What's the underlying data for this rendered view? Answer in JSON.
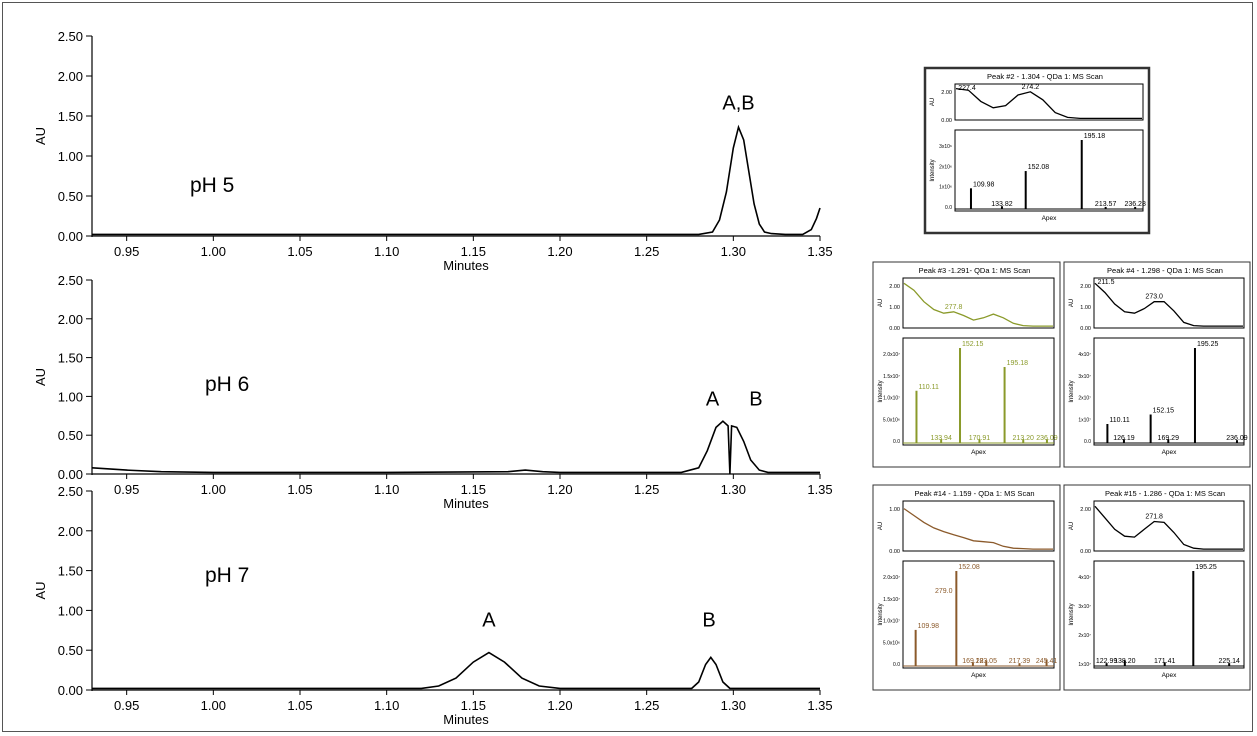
{
  "chart_data": [
    {
      "type": "line",
      "label": "pH 5",
      "xlabel": "Minutes",
      "ylabel": "AU",
      "xlim": [
        0.93,
        1.35
      ],
      "ylim": [
        0,
        2.5
      ],
      "x_ticks": [
        "0.95",
        "1.00",
        "1.05",
        "1.10",
        "1.15",
        "1.20",
        "1.25",
        "1.30",
        "1.35"
      ],
      "y_ticks": [
        "0.00",
        "0.50",
        "1.00",
        "1.50",
        "2.00",
        "2.50"
      ],
      "annotations": [
        {
          "text": "A,B",
          "x": 1.303,
          "y": 1.58
        }
      ],
      "series": [
        {
          "points": [
            [
              0.93,
              0.02
            ],
            [
              1.0,
              0.02
            ],
            [
              1.1,
              0.02
            ],
            [
              1.2,
              0.02
            ],
            [
              1.25,
              0.02
            ],
            [
              1.28,
              0.02
            ],
            [
              1.288,
              0.05
            ],
            [
              1.292,
              0.2
            ],
            [
              1.296,
              0.55
            ],
            [
              1.3,
              1.1
            ],
            [
              1.303,
              1.36
            ],
            [
              1.306,
              1.2
            ],
            [
              1.309,
              0.8
            ],
            [
              1.312,
              0.4
            ],
            [
              1.315,
              0.15
            ],
            [
              1.318,
              0.05
            ],
            [
              1.322,
              0.03
            ],
            [
              1.33,
              0.02
            ],
            [
              1.34,
              0.02
            ],
            [
              1.345,
              0.08
            ],
            [
              1.348,
              0.22
            ],
            [
              1.35,
              0.35
            ]
          ]
        }
      ]
    },
    {
      "type": "line",
      "label": "pH 6",
      "xlabel": "Minutes",
      "ylabel": "AU",
      "xlim": [
        0.93,
        1.35
      ],
      "ylim": [
        0,
        2.5
      ],
      "x_ticks": [
        "0.95",
        "1.00",
        "1.05",
        "1.10",
        "1.15",
        "1.20",
        "1.25",
        "1.30",
        "1.35"
      ],
      "y_ticks": [
        "0.00",
        "0.50",
        "1.00",
        "1.50",
        "2.00",
        "2.50"
      ],
      "annotations": [
        {
          "text": "A",
          "x": 1.288,
          "y": 0.88
        },
        {
          "text": "B",
          "x": 1.313,
          "y": 0.88
        }
      ],
      "series": [
        {
          "points": [
            [
              0.93,
              0.08
            ],
            [
              0.95,
              0.05
            ],
            [
              0.97,
              0.03
            ],
            [
              1.0,
              0.02
            ],
            [
              1.1,
              0.02
            ],
            [
              1.17,
              0.03
            ],
            [
              1.18,
              0.05
            ],
            [
              1.19,
              0.03
            ],
            [
              1.2,
              0.02
            ],
            [
              1.27,
              0.02
            ],
            [
              1.28,
              0.08
            ],
            [
              1.285,
              0.3
            ],
            [
              1.29,
              0.6
            ],
            [
              1.294,
              0.68
            ],
            [
              1.297,
              0.62
            ],
            [
              1.298,
              0.0
            ],
            [
              1.299,
              0.62
            ],
            [
              1.302,
              0.6
            ],
            [
              1.306,
              0.42
            ],
            [
              1.31,
              0.18
            ],
            [
              1.315,
              0.05
            ],
            [
              1.32,
              0.02
            ],
            [
              1.35,
              0.02
            ]
          ]
        }
      ]
    },
    {
      "type": "line",
      "label": "pH 7",
      "xlabel": "Minutes",
      "ylabel": "AU",
      "xlim": [
        0.93,
        1.35
      ],
      "ylim": [
        0,
        2.5
      ],
      "x_ticks": [
        "0.95",
        "1.00",
        "1.05",
        "1.10",
        "1.15",
        "1.20",
        "1.25",
        "1.30",
        "1.35"
      ],
      "y_ticks": [
        "0.00",
        "0.50",
        "1.00",
        "1.50",
        "2.00",
        "2.50"
      ],
      "annotations": [
        {
          "text": "A",
          "x": 1.159,
          "y": 0.8
        },
        {
          "text": "B",
          "x": 1.286,
          "y": 0.8
        }
      ],
      "series": [
        {
          "points": [
            [
              0.93,
              0.02
            ],
            [
              1.05,
              0.02
            ],
            [
              1.12,
              0.02
            ],
            [
              1.13,
              0.05
            ],
            [
              1.14,
              0.15
            ],
            [
              1.15,
              0.35
            ],
            [
              1.159,
              0.47
            ],
            [
              1.168,
              0.35
            ],
            [
              1.178,
              0.15
            ],
            [
              1.188,
              0.05
            ],
            [
              1.2,
              0.02
            ],
            [
              1.276,
              0.02
            ],
            [
              1.28,
              0.1
            ],
            [
              1.284,
              0.32
            ],
            [
              1.287,
              0.41
            ],
            [
              1.29,
              0.32
            ],
            [
              1.294,
              0.1
            ],
            [
              1.298,
              0.02
            ],
            [
              1.35,
              0.02
            ]
          ]
        }
      ]
    }
  ],
  "insets": [
    {
      "title": "Peak #2 - 1.304 - QDa 1: MS Scan",
      "color": "#000000",
      "uv": {
        "ylabel": "AU",
        "y_ticks": [
          "0.00",
          "2.00"
        ],
        "labels": [
          "227.4",
          "274.2"
        ],
        "curve": [
          0.95,
          0.9,
          0.55,
          0.35,
          0.42,
          0.75,
          0.85,
          0.6,
          0.2,
          0.05,
          0.02,
          0.02,
          0.02,
          0.02,
          0.02,
          0.02
        ]
      },
      "ms": {
        "ylabel": "Intensity",
        "xlabel": "Apex",
        "y_ticks": [
          "0.0",
          "1x10⁶",
          "2x10⁶",
          "3x10⁶"
        ],
        "x_range": [
          100,
          240
        ],
        "peaks": [
          {
            "mz": 109.98,
            "h": 0.3,
            "label": "109.98"
          },
          {
            "mz": 133.82,
            "h": 0.04,
            "label": "133.82"
          },
          {
            "mz": 152.08,
            "h": 0.55,
            "label": "152.08"
          },
          {
            "mz": 195.18,
            "h": 1.0,
            "label": "195.18"
          },
          {
            "mz": 213.57,
            "h": 0.03,
            "label": "213.57"
          },
          {
            "mz": 236.28,
            "h": 0.03,
            "label": "236.28"
          }
        ]
      }
    },
    {
      "title": "Peak #3 -1.291- QDa 1: MS Scan",
      "color": "#8a9a2a",
      "uv": {
        "ylabel": "AU",
        "y_ticks": [
          "0.00",
          "1.00",
          "2.00"
        ],
        "labels": [
          "277.8"
        ],
        "curve": [
          0.95,
          0.8,
          0.55,
          0.38,
          0.3,
          0.33,
          0.25,
          0.15,
          0.2,
          0.28,
          0.2,
          0.08,
          0.03,
          0.02,
          0.02,
          0.02
        ]
      },
      "ms": {
        "ylabel": "Intensity",
        "xlabel": "Apex",
        "y_ticks": [
          "0.0",
          "5.0x10⁶",
          "1.0x10⁷",
          "1.5x10⁷",
          "2.0x10⁷"
        ],
        "x_range": [
          100,
          240
        ],
        "peaks": [
          {
            "mz": 110.11,
            "h": 0.55,
            "label": "110.11"
          },
          {
            "mz": 133.94,
            "h": 0.04,
            "label": "133.94"
          },
          {
            "mz": 152.15,
            "h": 1.0,
            "label": "152.15"
          },
          {
            "mz": 170.91,
            "h": 0.04,
            "label": "170.91"
          },
          {
            "mz": 195.18,
            "h": 0.8,
            "label": "195.18"
          },
          {
            "mz": 213.2,
            "h": 0.04,
            "label": "213.20"
          },
          {
            "mz": 236.09,
            "h": 0.04,
            "label": "236.09"
          }
        ]
      }
    },
    {
      "title": "Peak #4 - 1.298 - QDa 1: MS Scan",
      "color": "#000000",
      "uv": {
        "ylabel": "AU",
        "y_ticks": [
          "0.00",
          "1.00",
          "2.00"
        ],
        "labels": [
          "211.5",
          "273.0"
        ],
        "curve": [
          0.95,
          0.75,
          0.5,
          0.33,
          0.3,
          0.4,
          0.55,
          0.55,
          0.35,
          0.1,
          0.03,
          0.02,
          0.02,
          0.02,
          0.02,
          0.02
        ]
      },
      "ms": {
        "ylabel": "Intensity",
        "xlabel": "Apex",
        "y_ticks": [
          "0.0",
          "1x10⁷",
          "2x10⁷",
          "3x10⁷",
          "4x10⁷"
        ],
        "x_range": [
          100,
          240
        ],
        "peaks": [
          {
            "mz": 110.11,
            "h": 0.2,
            "label": "110.11"
          },
          {
            "mz": 126.19,
            "h": 0.04,
            "label": "126.19"
          },
          {
            "mz": 152.15,
            "h": 0.3,
            "label": "152.15"
          },
          {
            "mz": 169.29,
            "h": 0.04,
            "label": "169.29"
          },
          {
            "mz": 195.25,
            "h": 1.0,
            "label": "195.25"
          },
          {
            "mz": 236.09,
            "h": 0.03,
            "label": "236.09"
          }
        ]
      }
    },
    {
      "title": "Peak #14 - 1.159 - QDa 1: MS Scan",
      "color": "#8b5a2b",
      "uv": {
        "ylabel": "AU",
        "y_ticks": [
          "0.00",
          "1.00"
        ],
        "labels": [
          "279.0"
        ],
        "curve": [
          0.9,
          0.75,
          0.6,
          0.48,
          0.4,
          0.33,
          0.27,
          0.2,
          0.18,
          0.16,
          0.08,
          0.04,
          0.03,
          0.02,
          0.02,
          0.02
        ]
      },
      "ms": {
        "ylabel": "Intensity",
        "xlabel": "Apex",
        "y_ticks": [
          "0.0",
          "5.0x10⁶",
          "1.0x10⁷",
          "1.5x10⁷",
          "2.0x10⁷"
        ],
        "x_range": [
          100,
          250
        ],
        "peaks": [
          {
            "mz": 109.98,
            "h": 0.38,
            "label": "109.98"
          },
          {
            "mz": 152.08,
            "h": 1.0,
            "label": "152.08"
          },
          {
            "mz": 169.22,
            "h": 0.04,
            "label": "169.22"
          },
          {
            "mz": 183.05,
            "h": 0.06,
            "label": "183.05"
          },
          {
            "mz": 217.39,
            "h": 0.03,
            "label": "217.39"
          },
          {
            "mz": 245.41,
            "h": 0.07,
            "label": "245.41"
          }
        ]
      }
    },
    {
      "title": "Peak #15 - 1.286 - QDa 1: MS Scan",
      "color": "#000000",
      "uv": {
        "ylabel": "AU",
        "y_ticks": [
          "0.00",
          "2.00"
        ],
        "labels": [
          "271.8"
        ],
        "curve": [
          0.95,
          0.7,
          0.45,
          0.3,
          0.28,
          0.45,
          0.62,
          0.6,
          0.38,
          0.12,
          0.04,
          0.02,
          0.02,
          0.02,
          0.02,
          0.02
        ]
      },
      "ms": {
        "ylabel": "Intensity",
        "xlabel": "Apex",
        "y_ticks": [
          "1x10⁷",
          "2x10⁷",
          "3x10⁷",
          "4x10⁷"
        ],
        "x_range": [
          115,
          235
        ],
        "peaks": [
          {
            "mz": 122.99,
            "h": 0.03,
            "label": "122.99"
          },
          {
            "mz": 138.2,
            "h": 0.06,
            "label": "138.20"
          },
          {
            "mz": 171.41,
            "h": 0.04,
            "label": "171.41"
          },
          {
            "mz": 195.25,
            "h": 1.0,
            "label": "195.25"
          },
          {
            "mz": 225.14,
            "h": 0.03,
            "label": "225.14"
          }
        ]
      }
    }
  ]
}
